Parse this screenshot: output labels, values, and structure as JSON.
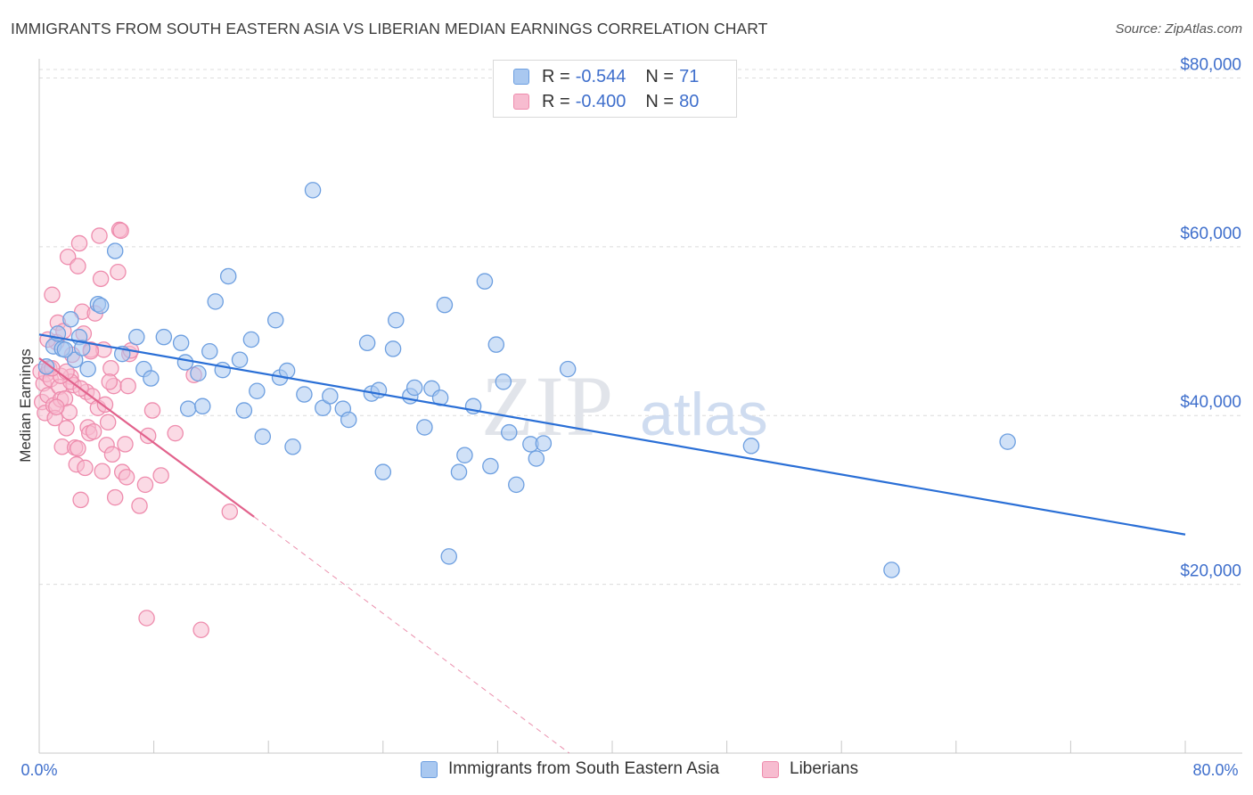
{
  "header": {
    "title": "IMMIGRANTS FROM SOUTH EASTERN ASIA VS LIBERIAN MEDIAN EARNINGS CORRELATION CHART",
    "source": "Source: ZipAtlas.com"
  },
  "watermark": {
    "zip": "ZIP",
    "atlas": "atlas"
  },
  "legend": {
    "rows": [
      {
        "r_label": "R =",
        "r_value": "-0.544",
        "n_label": "N =",
        "n_value": "71"
      },
      {
        "r_label": "R =",
        "r_value": "-0.400",
        "n_label": "N =",
        "n_value": "80"
      }
    ]
  },
  "bottom_legend": {
    "items": [
      "Immigrants from South Eastern Asia",
      "Liberians"
    ]
  },
  "colors": {
    "blue_fill": "#a9c8f0",
    "blue_stroke": "#6d9fe0",
    "blue_line": "#2a6fd6",
    "pink_fill": "#f7bcd0",
    "pink_stroke": "#ee8cad",
    "pink_line": "#e2628c",
    "tick_label": "#3f6fcc",
    "grid": "#dcdcdc"
  },
  "chart_data": {
    "type": "scatter",
    "ylabel": "Median Earnings",
    "xlabel": "",
    "xlim": [
      0,
      80
    ],
    "ylim": [
      0,
      82000
    ],
    "x_tick_labels": [
      "0.0%",
      "80.0%"
    ],
    "y_ticks": [
      20000,
      40000,
      60000,
      80000
    ],
    "y_tick_labels": [
      "$20,000",
      "$40,000",
      "$60,000",
      "$80,000"
    ],
    "grid": true,
    "legend_position": "top-center",
    "series": [
      {
        "name": "Immigrants from South Eastern Asia",
        "color": "blue",
        "r": -0.544,
        "n": 71,
        "trend": {
          "x": [
            0,
            80
          ],
          "y": [
            49600,
            25900
          ]
        },
        "points": [
          [
            0.5,
            45800
          ],
          [
            1.0,
            48200
          ],
          [
            1.3,
            49700
          ],
          [
            1.6,
            47900
          ],
          [
            2.5,
            46600
          ],
          [
            2.8,
            49300
          ],
          [
            3.4,
            45500
          ],
          [
            4.1,
            53200
          ],
          [
            5.3,
            59500
          ],
          [
            5.8,
            47300
          ],
          [
            6.8,
            49300
          ],
          [
            7.3,
            45500
          ],
          [
            7.8,
            44400
          ],
          [
            8.7,
            49300
          ],
          [
            9.9,
            48600
          ],
          [
            10.2,
            46300
          ],
          [
            10.4,
            40800
          ],
          [
            11.1,
            45000
          ],
          [
            11.4,
            41100
          ],
          [
            11.9,
            47600
          ],
          [
            12.3,
            53500
          ],
          [
            12.8,
            45400
          ],
          [
            13.2,
            56500
          ],
          [
            14.0,
            46600
          ],
          [
            14.3,
            40600
          ],
          [
            14.8,
            49000
          ],
          [
            15.2,
            42900
          ],
          [
            15.6,
            37500
          ],
          [
            16.5,
            51300
          ],
          [
            16.8,
            44500
          ],
          [
            17.3,
            45300
          ],
          [
            17.7,
            36300
          ],
          [
            18.5,
            42500
          ],
          [
            19.1,
            66700
          ],
          [
            19.8,
            40900
          ],
          [
            20.3,
            42300
          ],
          [
            21.2,
            40800
          ],
          [
            21.6,
            39500
          ],
          [
            22.9,
            48600
          ],
          [
            23.2,
            42600
          ],
          [
            23.7,
            43000
          ],
          [
            24.0,
            33300
          ],
          [
            24.7,
            47900
          ],
          [
            24.9,
            51300
          ],
          [
            25.9,
            42300
          ],
          [
            26.2,
            43300
          ],
          [
            26.9,
            38600
          ],
          [
            27.4,
            43200
          ],
          [
            28.0,
            42100
          ],
          [
            28.3,
            53100
          ],
          [
            28.6,
            23300
          ],
          [
            29.3,
            33300
          ],
          [
            29.7,
            35300
          ],
          [
            30.3,
            41100
          ],
          [
            31.1,
            55900
          ],
          [
            31.5,
            34000
          ],
          [
            31.9,
            48400
          ],
          [
            32.4,
            44000
          ],
          [
            32.8,
            38000
          ],
          [
            33.3,
            31800
          ],
          [
            34.3,
            36600
          ],
          [
            34.7,
            34900
          ],
          [
            35.2,
            36700
          ],
          [
            36.9,
            45500
          ],
          [
            49.7,
            36400
          ],
          [
            59.5,
            21700
          ],
          [
            67.6,
            36900
          ],
          [
            1.8,
            47800
          ],
          [
            3.0,
            48000
          ],
          [
            2.2,
            51400
          ],
          [
            4.3,
            53000
          ]
        ]
      },
      {
        "name": "Liberians",
        "color": "pink",
        "r": -0.4,
        "n": 80,
        "trend": {
          "x": [
            0,
            15
          ],
          "y": [
            46800,
            28000
          ]
        },
        "trend_dashed": {
          "x": [
            15,
            37
          ],
          "y": [
            28000,
            0
          ]
        },
        "points": [
          [
            0.1,
            45200
          ],
          [
            0.2,
            41600
          ],
          [
            0.3,
            43800
          ],
          [
            0.4,
            40300
          ],
          [
            0.5,
            44900
          ],
          [
            0.6,
            42400
          ],
          [
            0.7,
            45600
          ],
          [
            0.8,
            44300
          ],
          [
            0.9,
            54300
          ],
          [
            1.0,
            41200
          ],
          [
            1.1,
            39700
          ],
          [
            1.2,
            48700
          ],
          [
            1.3,
            51000
          ],
          [
            1.4,
            43400
          ],
          [
            1.5,
            41900
          ],
          [
            1.6,
            36300
          ],
          [
            1.7,
            50000
          ],
          [
            1.8,
            42000
          ],
          [
            1.9,
            38500
          ],
          [
            2.0,
            58800
          ],
          [
            2.1,
            40400
          ],
          [
            2.2,
            44600
          ],
          [
            2.3,
            47200
          ],
          [
            2.4,
            43600
          ],
          [
            2.5,
            36200
          ],
          [
            2.6,
            34200
          ],
          [
            2.7,
            57700
          ],
          [
            2.8,
            60400
          ],
          [
            2.9,
            30000
          ],
          [
            3.0,
            52300
          ],
          [
            3.1,
            49700
          ],
          [
            3.2,
            33800
          ],
          [
            3.3,
            42800
          ],
          [
            3.4,
            38600
          ],
          [
            3.5,
            37900
          ],
          [
            3.6,
            47800
          ],
          [
            3.7,
            42300
          ],
          [
            3.8,
            38100
          ],
          [
            3.9,
            52100
          ],
          [
            4.1,
            40900
          ],
          [
            4.2,
            61300
          ],
          [
            4.3,
            56200
          ],
          [
            4.4,
            33400
          ],
          [
            4.5,
            47800
          ],
          [
            4.6,
            41300
          ],
          [
            4.7,
            36500
          ],
          [
            4.8,
            39200
          ],
          [
            5.0,
            45600
          ],
          [
            5.1,
            35400
          ],
          [
            5.2,
            43500
          ],
          [
            5.3,
            30300
          ],
          [
            5.5,
            57000
          ],
          [
            5.6,
            62000
          ],
          [
            5.7,
            61900
          ],
          [
            5.8,
            33300
          ],
          [
            6.0,
            36600
          ],
          [
            6.1,
            32700
          ],
          [
            6.2,
            43500
          ],
          [
            6.3,
            47300
          ],
          [
            7.0,
            29300
          ],
          [
            7.4,
            31800
          ],
          [
            7.6,
            37600
          ],
          [
            7.9,
            40600
          ],
          [
            8.5,
            32900
          ],
          [
            9.5,
            37900
          ],
          [
            10.8,
            44800
          ],
          [
            11.3,
            14600
          ],
          [
            13.3,
            28600
          ],
          [
            7.5,
            16000
          ],
          [
            2.2,
            44000
          ],
          [
            1.5,
            44700
          ],
          [
            0.9,
            45600
          ],
          [
            3.6,
            47600
          ],
          [
            2.7,
            36100
          ],
          [
            1.9,
            45200
          ],
          [
            0.6,
            49000
          ],
          [
            1.2,
            41000
          ],
          [
            2.9,
            43200
          ],
          [
            4.9,
            44000
          ],
          [
            6.4,
            47700
          ]
        ]
      }
    ]
  }
}
